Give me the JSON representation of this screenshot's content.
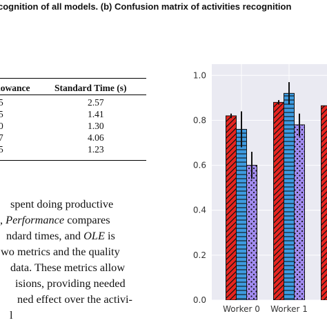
{
  "caption": "cognition of all models. (b) Confusion matrix of activities recognition",
  "table": {
    "headers": [
      "lowance",
      "Standard Time (s)"
    ],
    "rows": [
      {
        "allowance": "5",
        "standard_time": "2.57"
      },
      {
        "allowance": "5",
        "standard_time": "1.41"
      },
      {
        "allowance": "0",
        "standard_time": "1.30"
      },
      {
        "allowance": "7",
        "standard_time": "4.06"
      },
      {
        "allowance": "5",
        "standard_time": "1.23"
      }
    ]
  },
  "body_text": {
    "lines": [
      {
        "parts": [
          {
            "t": "spent doing productive",
            "i": false
          }
        ]
      },
      {
        "parts": [
          {
            "t": ", ",
            "i": false
          },
          {
            "t": "Performance",
            "i": true
          },
          {
            "t": " compares",
            "i": false
          }
        ]
      },
      {
        "parts": [
          {
            "t": "ndard times, and ",
            "i": false
          },
          {
            "t": "OLE",
            "i": true
          },
          {
            "t": " is",
            "i": false
          }
        ]
      },
      {
        "parts": [
          {
            "t": "wo metrics and the quality",
            "i": false
          }
        ]
      },
      {
        "parts": [
          {
            "t": "data. These metrics allow",
            "i": false
          }
        ]
      },
      {
        "parts": [
          {
            "t": "isions, providing needed",
            "i": false
          }
        ]
      },
      {
        "parts": [
          {
            "t": "ned effect over the activi-",
            "i": false
          }
        ]
      },
      {
        "parts": [
          {
            "t": "l",
            "i": false
          }
        ]
      }
    ]
  },
  "chart_data": {
    "type": "bar",
    "categories": [
      "Worker 0",
      "Worker 1",
      "W"
    ],
    "ylim": [
      0.0,
      1.05
    ],
    "yticks": [
      "0.0",
      "0.2",
      "0.4",
      "0.6",
      "0.8",
      "1.0"
    ],
    "grid": true,
    "series": [
      {
        "color": "#e8251f",
        "hatch": "diagonal",
        "values": [
          0.82,
          0.88,
          0.865
        ],
        "errors": [
          0.01,
          0.01,
          null
        ]
      },
      {
        "color": "#3d9be0",
        "hatch": "horizontal",
        "values": [
          0.76,
          0.92,
          null
        ],
        "errors": [
          0.08,
          0.05,
          null
        ]
      },
      {
        "color": "#a28cf0",
        "hatch": "dots",
        "values": [
          0.6,
          0.78,
          null
        ],
        "errors": [
          0.06,
          0.05,
          null
        ]
      }
    ]
  }
}
